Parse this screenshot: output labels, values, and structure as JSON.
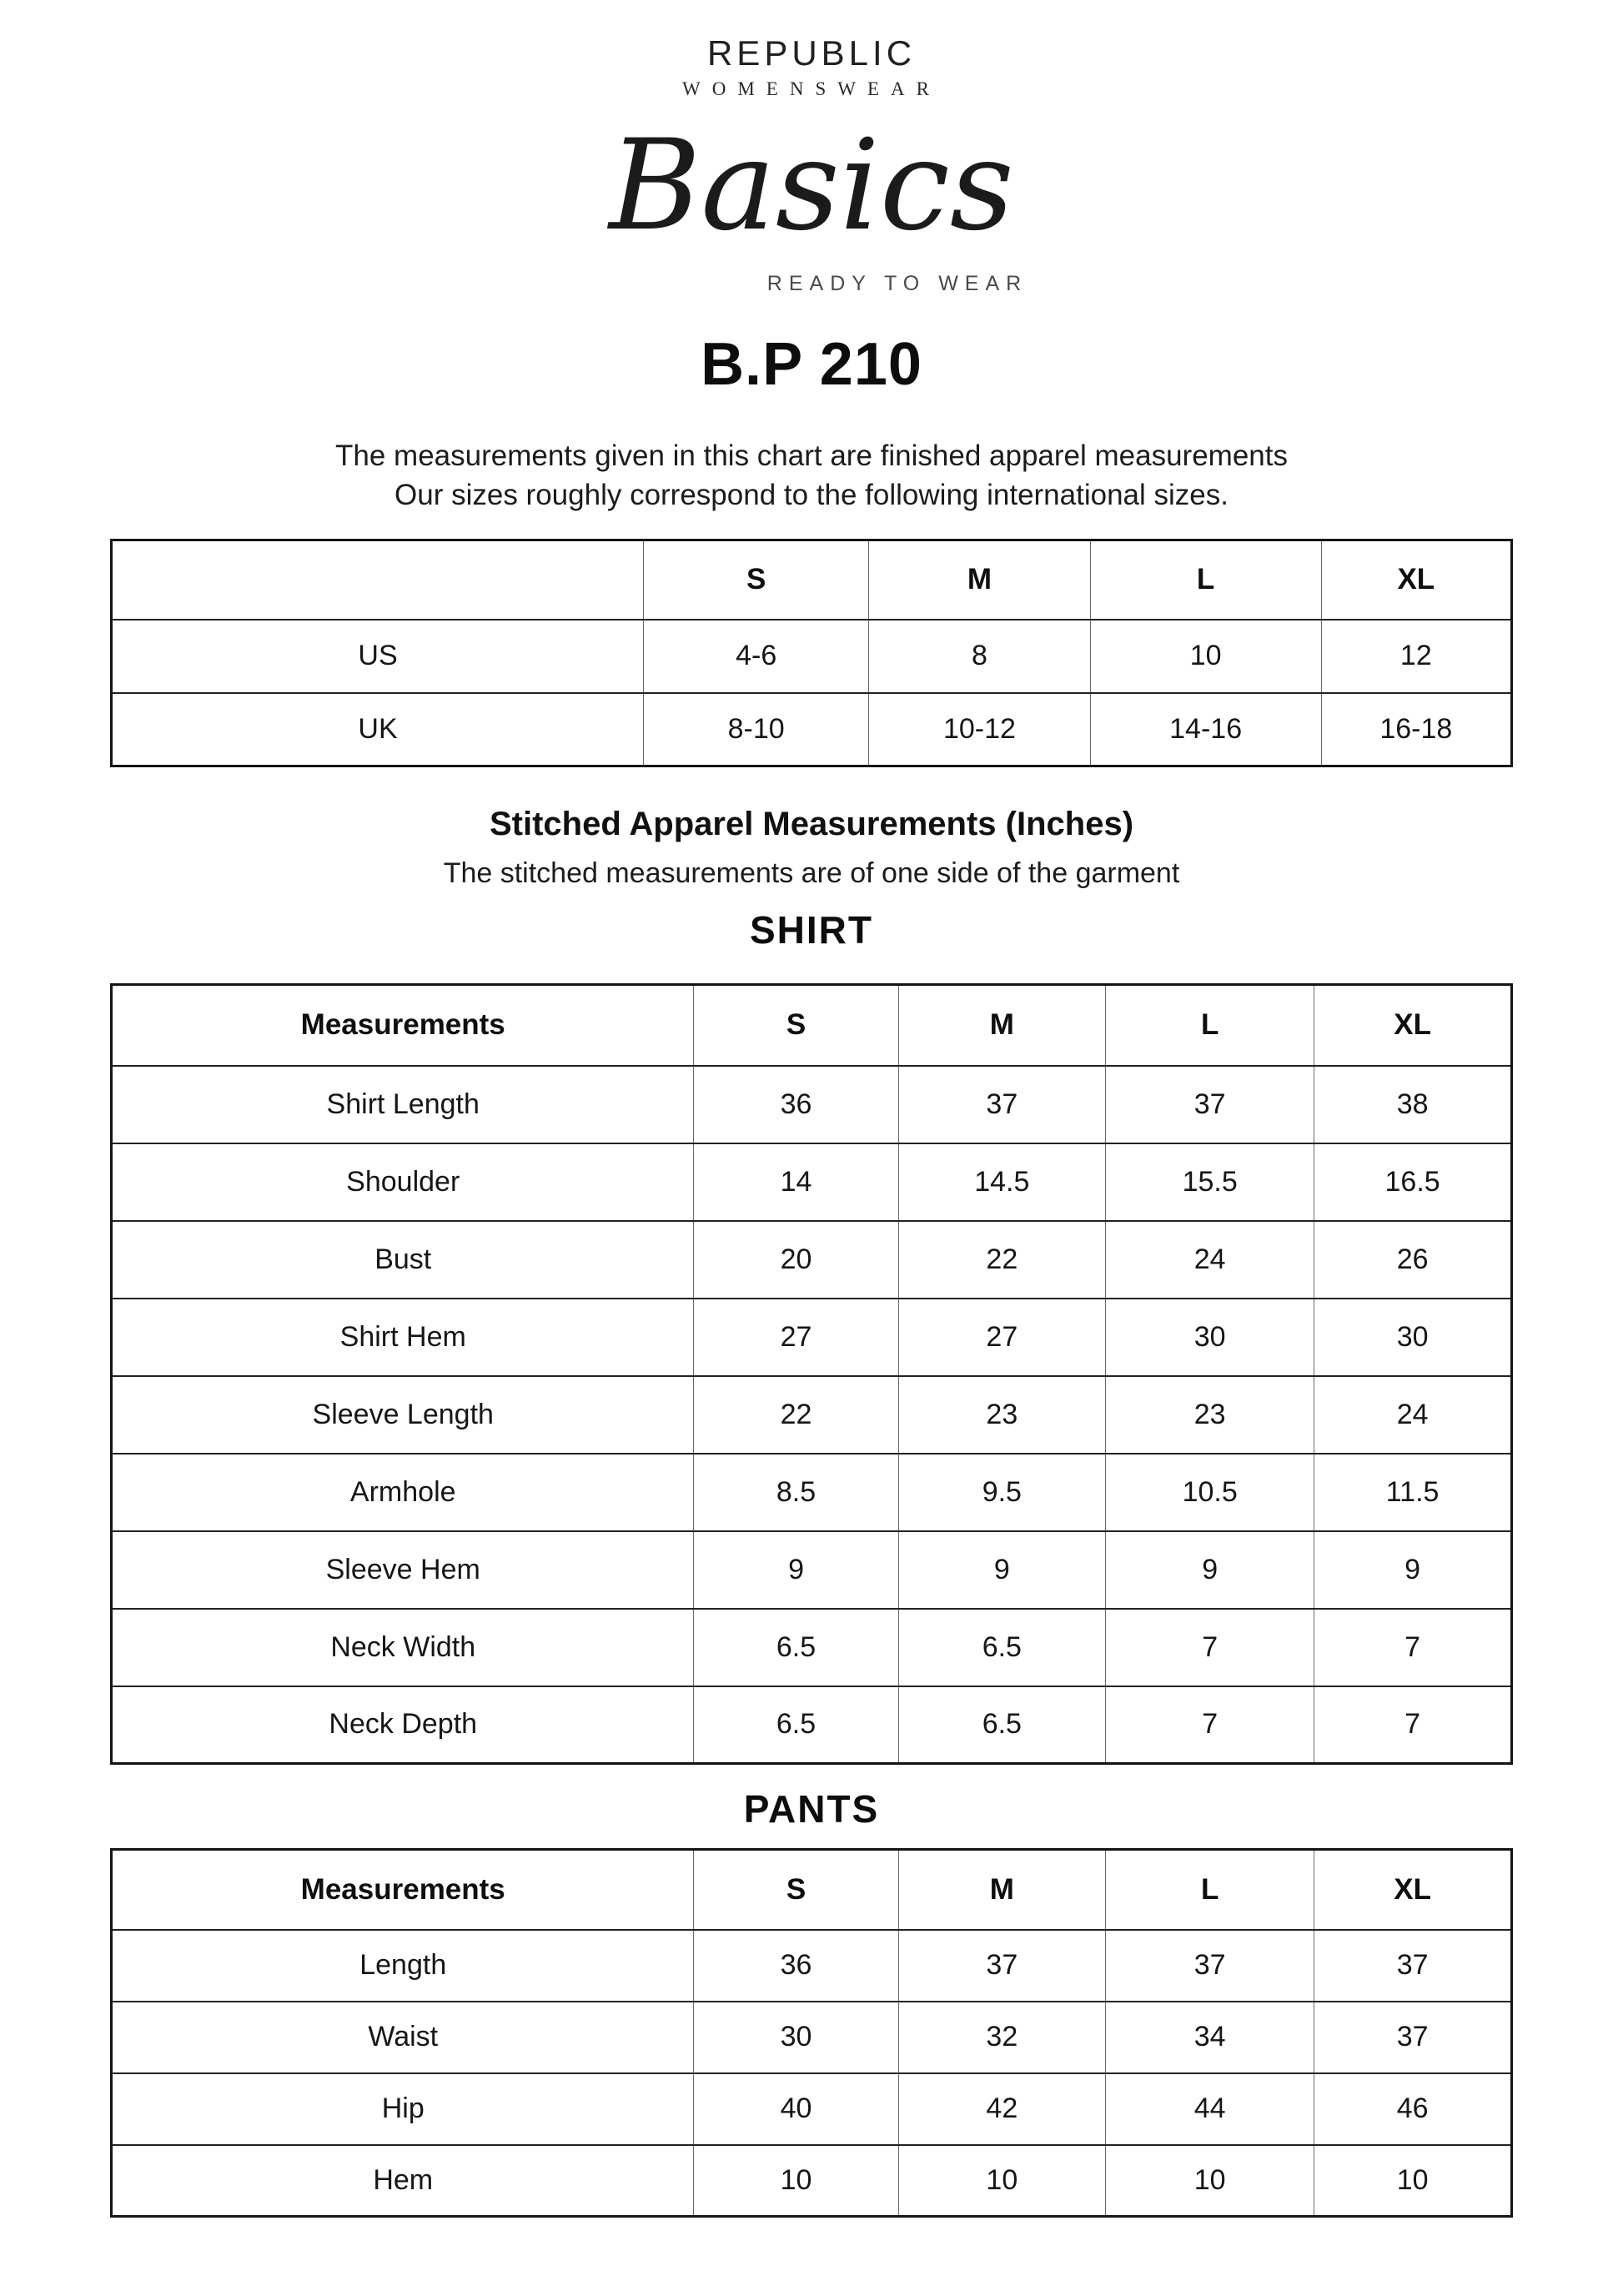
{
  "brand": {
    "name": "REPUBLIC",
    "division": "WOMENSWEAR",
    "collection_script": "Basics",
    "tagline": "READY TO WEAR"
  },
  "product_code": "B.P 210",
  "intro": {
    "line1": "The measurements given in this chart are finished apparel measurements",
    "line2": "Our sizes roughly correspond to the following international sizes."
  },
  "size_table": {
    "columns": [
      "",
      "S",
      "M",
      "L",
      "XL"
    ],
    "rows": [
      [
        "US",
        "4-6",
        "8",
        "10",
        "12"
      ],
      [
        "UK",
        "8-10",
        "10-12",
        "14-16",
        "16-18"
      ]
    ]
  },
  "section": {
    "title": "Stitched Apparel Measurements (Inches)",
    "subtitle": "The stitched measurements are of one side of the garment"
  },
  "shirt_heading": "SHIRT",
  "shirt_table": {
    "columns": [
      "Measurements",
      "S",
      "M",
      "L",
      "XL"
    ],
    "rows": [
      [
        "Shirt Length",
        "36",
        "37",
        "37",
        "38"
      ],
      [
        "Shoulder",
        "14",
        "14.5",
        "15.5",
        "16.5"
      ],
      [
        "Bust",
        "20",
        "22",
        "24",
        "26"
      ],
      [
        "Shirt Hem",
        "27",
        "27",
        "30",
        "30"
      ],
      [
        "Sleeve Length",
        "22",
        "23",
        "23",
        "24"
      ],
      [
        "Armhole",
        "8.5",
        "9.5",
        "10.5",
        "11.5"
      ],
      [
        "Sleeve Hem",
        "9",
        "9",
        "9",
        "9"
      ],
      [
        "Neck Width",
        "6.5",
        "6.5",
        "7",
        "7"
      ],
      [
        "Neck Depth",
        "6.5",
        "6.5",
        "7",
        "7"
      ]
    ]
  },
  "pants_heading": "PANTS",
  "pants_table": {
    "columns": [
      "Measurements",
      "S",
      "M",
      "L",
      "XL"
    ],
    "rows": [
      [
        "Length",
        "36",
        "37",
        "37",
        "37"
      ],
      [
        "Waist",
        "30",
        "32",
        "34",
        "37"
      ],
      [
        "Hip",
        "40",
        "42",
        "44",
        "46"
      ],
      [
        "Hem",
        "10",
        "10",
        "10",
        "10"
      ]
    ]
  },
  "colors": {
    "text": "#1a1a1a",
    "muted_gray": "#4a4a4a",
    "border": "#141414",
    "background": "#ffffff"
  }
}
